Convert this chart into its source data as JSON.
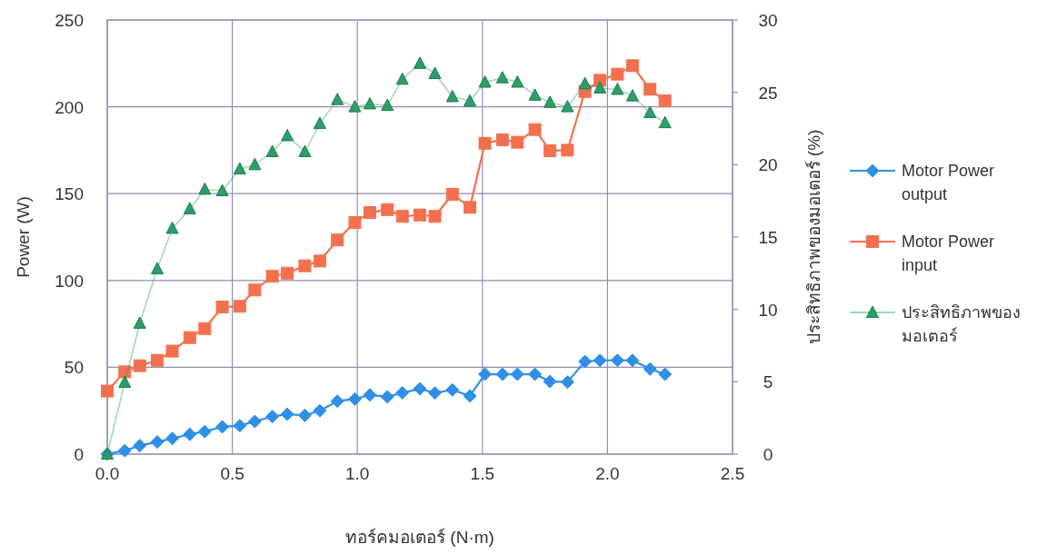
{
  "chart_data": {
    "type": "line",
    "xlabel": "ทอร์คมอเตอร์ (N·m)",
    "ylabel": "Power (W)",
    "y2label": "ประสิทธิภาพของมอเตอร์ (%)",
    "x": [
      0,
      0.07,
      0.13,
      0.2,
      0.26,
      0.33,
      0.39,
      0.46,
      0.53,
      0.59,
      0.66,
      0.72,
      0.79,
      0.85,
      0.92,
      0.99,
      1.05,
      1.12,
      1.18,
      1.25,
      1.31,
      1.38,
      1.45,
      1.51,
      1.58,
      1.64,
      1.71,
      1.77,
      1.84,
      1.91,
      1.97,
      2.04,
      2.1,
      2.17,
      2.23
    ],
    "xlim": [
      0,
      2.5
    ],
    "xticks": [
      {
        "value": 0,
        "label": "0.0"
      },
      {
        "value": 0.5,
        "label": "0.5"
      },
      {
        "value": 1,
        "label": "1.0"
      },
      {
        "value": 1.5,
        "label": "1.5"
      },
      {
        "value": 2,
        "label": "2.0"
      },
      {
        "value": 2.5,
        "label": "2.5"
      }
    ],
    "ylim": [
      0,
      250
    ],
    "yticks": [
      0,
      50,
      100,
      150,
      200,
      250
    ],
    "y2lim": [
      0,
      30
    ],
    "y2ticks": [
      0,
      5,
      10,
      15,
      20,
      25,
      30
    ],
    "grid": true,
    "legend": "right",
    "line_style": "solid",
    "series": [
      {
        "name": "Motor Power output",
        "color": "#2f8fe6",
        "marker": "diamond",
        "values": [
          0,
          2,
          4.9,
          7,
          9,
          11.4,
          13,
          15.7,
          16.4,
          18.8,
          21.6,
          23,
          22.3,
          25,
          30.5,
          31.7,
          34.1,
          33,
          35.3,
          37.6,
          35.2,
          37,
          33.5,
          46,
          46,
          46,
          46,
          41.8,
          41.5,
          53.3,
          54,
          54,
          54,
          49,
          46
        ]
      },
      {
        "name": "Motor Power input",
        "color": "#f2704f",
        "marker": "square",
        "values": [
          36.3,
          47.4,
          50.9,
          54,
          59.3,
          67.1,
          72.3,
          84.7,
          85.1,
          94.5,
          102.4,
          104.2,
          108.4,
          111.2,
          123.3,
          133.4,
          139.1,
          140.8,
          136.9,
          137.7,
          136.9,
          149.6,
          142.1,
          179,
          181,
          179.6,
          186.9,
          174.7,
          175,
          208.8,
          215.3,
          218.8,
          223.7,
          210.1,
          203.4
        ]
      },
      {
        "name": "ประสิทธิภาพของมอเตอร์",
        "color": "#2e9e68",
        "marker": "triangle",
        "axis": "y2",
        "values": [
          0,
          4.96,
          9.04,
          12.8,
          15.6,
          16.95,
          18.3,
          18.2,
          19.7,
          20,
          20.9,
          22,
          20.9,
          22.85,
          24.5,
          24,
          24.2,
          24.1,
          25.9,
          27,
          26.3,
          24.7,
          24.4,
          25.7,
          26,
          25.7,
          24.8,
          24.3,
          24,
          25.6,
          25.3,
          25.2,
          24.75,
          23.6,
          22.9
        ]
      }
    ]
  }
}
